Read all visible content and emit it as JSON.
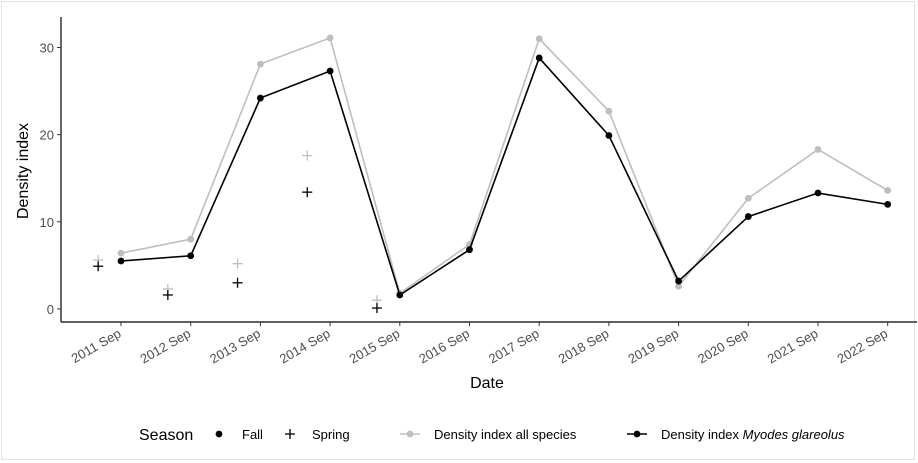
{
  "chart_data": {
    "type": "line",
    "xlabel": "Date",
    "ylabel": "Density index",
    "ylim": [
      -1.5,
      33.5
    ],
    "yticks": [
      0,
      10,
      20,
      30
    ],
    "grid": false,
    "legend_position": "bottom",
    "x": [
      "2011 Sep",
      "2012 Sep",
      "2013 Sep",
      "2014 Sep",
      "2015 Sep",
      "2016 Sep",
      "2017 Sep",
      "2018 Sep",
      "2019 Sep",
      "2020 Sep",
      "2021 Sep",
      "2022 Sep"
    ],
    "series": [
      {
        "name": "Density index all species",
        "color": "#bebebe",
        "values": [
          6.4,
          8.0,
          28.1,
          31.1,
          1.8,
          7.4,
          31.0,
          22.7,
          2.6,
          12.7,
          18.3,
          13.6
        ]
      },
      {
        "name": "Density index Myodes glareolus",
        "name_prefix": "Density index ",
        "name_italic": "Myodes glareolus",
        "color": "#000000",
        "values": [
          5.5,
          6.1,
          24.2,
          27.3,
          1.6,
          6.8,
          28.8,
          19.9,
          3.2,
          10.6,
          13.3,
          12.0
        ]
      }
    ],
    "spring_points": {
      "date_offset": "≈ 6 months before each Sep tick",
      "x": [
        "2011 Mar",
        "2012 Mar",
        "2013 Mar",
        "2014 Mar",
        "2015 Mar"
      ],
      "all_species": [
        5.6,
        2.3,
        5.2,
        17.6,
        1.0
      ],
      "myodes_glareolus": [
        4.9,
        1.6,
        3.0,
        13.4,
        0.1
      ]
    },
    "legend": {
      "season_title": "Season",
      "season_items": [
        {
          "label": "Fall",
          "symbol": "dot"
        },
        {
          "label": "Spring",
          "symbol": "plus"
        }
      ]
    }
  }
}
